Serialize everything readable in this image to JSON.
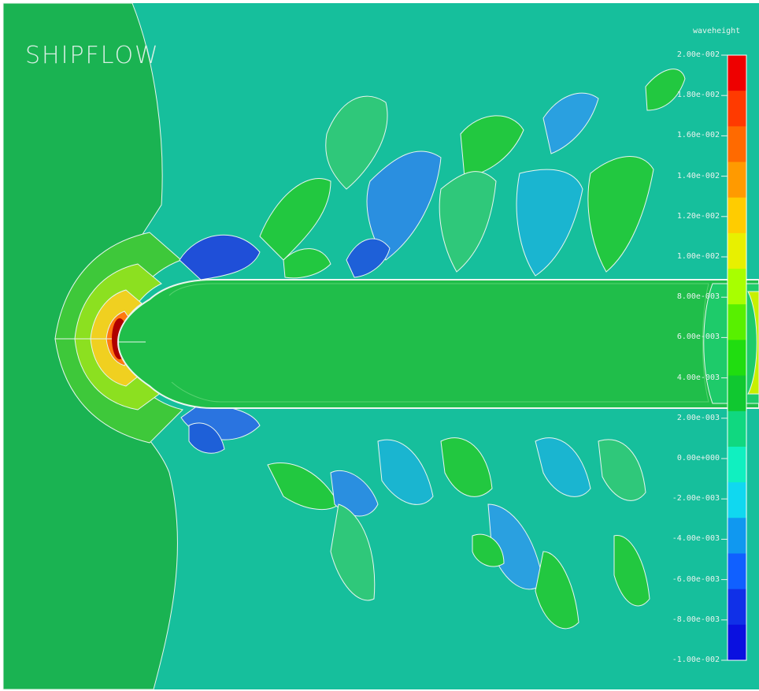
{
  "app": {
    "title": "SHIPFLOW"
  },
  "legend": {
    "title": "waveheight",
    "labels": [
      "2.00e-002",
      "1.80e-002",
      "1.60e-002",
      "1.40e-002",
      "1.20e-002",
      "1.00e-002",
      "8.00e-003",
      "6.00e-003",
      "4.00e-003",
      "2.00e-003",
      "0.00e+000",
      "-2.00e-003",
      "-4.00e-003",
      "-6.00e-003",
      "-8.00e-003",
      "-1.00e-002"
    ],
    "colors": [
      "#ee0000",
      "#ff3a00",
      "#ff6a00",
      "#ff9a00",
      "#ffcc00",
      "#e8f000",
      "#a8ff00",
      "#58f000",
      "#20dd10",
      "#10c830",
      "#10d880",
      "#10f0c0",
      "#10d8f0",
      "#1098f0",
      "#1060ff",
      "#1030e8",
      "#0a10e0"
    ]
  },
  "colors": {
    "background_field": "#16bf9c",
    "calm_far_field": "#1ab352",
    "hull": "#20be4a"
  }
}
